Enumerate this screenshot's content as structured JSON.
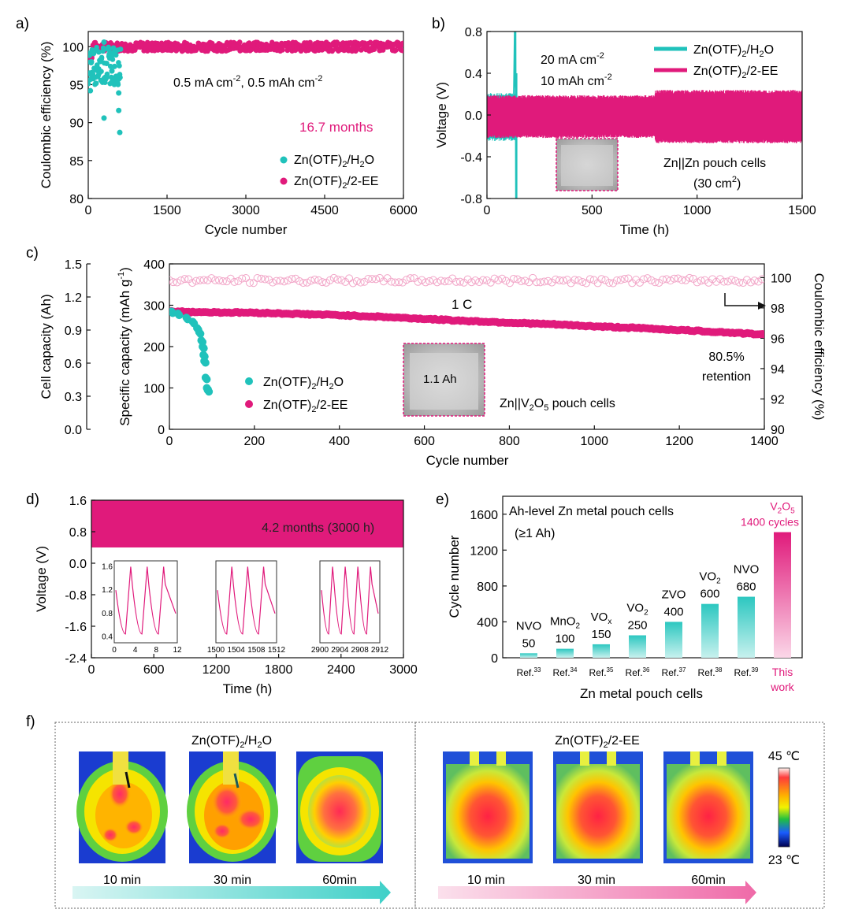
{
  "panels": {
    "a": "a)",
    "b": "b)",
    "c": "c)",
    "d": "d)",
    "e": "e)",
    "f": "f)"
  },
  "colors": {
    "teal": "#20c2bb",
    "pink": "#e01a7b",
    "pink_light": "#f2a6c8"
  },
  "chart_data": [
    {
      "id": "a",
      "type": "scatter",
      "xlabel": "Cycle number",
      "ylabel": "Coulombic efficiency (%)",
      "xlim": [
        0,
        6000
      ],
      "ylim": [
        80,
        102
      ],
      "xticks": [
        "0",
        "1500",
        "3000",
        "4500",
        "6000"
      ],
      "yticks": [
        "80",
        "85",
        "90",
        "95",
        "100"
      ],
      "annotation": "0.5 mA cm-2, 0.5 mAh cm-2",
      "highlight": "16.7 months",
      "series": [
        {
          "name": "Zn(OTF)2/H2O",
          "color": "#20c2bb",
          "x": [
            20,
            40,
            60,
            100,
            150,
            200,
            250,
            300,
            350,
            400,
            450,
            500,
            530,
            560,
            580,
            300,
            580,
            600
          ],
          "y": [
            96.5,
            94.2,
            98,
            99.1,
            99.6,
            99.3,
            98.4,
            100.6,
            97.8,
            99.0,
            96.8,
            97.4,
            96.1,
            95.2,
            93.9,
            90.6,
            91.6,
            88.7
          ]
        },
        {
          "name": "Zn(OTF)2/2-EE",
          "color": "#e01a7b",
          "x": [
            0,
            6000
          ],
          "y": [
            100,
            100
          ],
          "note": "dense band of points at ~100% from cycle 0 to 6000"
        }
      ]
    },
    {
      "id": "b",
      "type": "line",
      "xlabel": "Time (h)",
      "ylabel": "Voltage (V)",
      "xlim": [
        0,
        1500
      ],
      "ylim": [
        -0.8,
        0.8
      ],
      "xticks": [
        "0",
        "500",
        "1000",
        "1500"
      ],
      "yticks": [
        "-0.8",
        "-0.4",
        "0.0",
        "0.4",
        "0.8"
      ],
      "annotations": [
        "20 mA cm-2",
        "10 mAh cm-2"
      ],
      "note_text": [
        "Zn||Zn pouch cells",
        "(30 cm2)"
      ],
      "series": [
        {
          "name": "Zn(OTF)2/H2O",
          "color": "#20c2bb",
          "x": [
            0,
            140
          ],
          "y_band": [
            -0.25,
            0.8
          ],
          "note": "short-circuit spike near 140 h"
        },
        {
          "name": "Zn(OTF)2/2-EE",
          "color": "#e01a7b",
          "x": [
            0,
            1500
          ],
          "y_band": [
            -0.22,
            0.2
          ]
        }
      ]
    },
    {
      "id": "c",
      "type": "scatter",
      "xlabel": "Cycle number",
      "ylabel_left_outer": "Cell capacity (Ah)",
      "ylabel_left": "Specific capacity (mAh g-1)",
      "ylabel_right": "Coulombic efficiency (%)",
      "xlim": [
        0,
        1400
      ],
      "ylim": [
        0,
        400
      ],
      "y2lim": [
        90,
        100.9
      ],
      "xticks": [
        "0",
        "200",
        "400",
        "600",
        "800",
        "1000",
        "1200",
        "1400"
      ],
      "yticks": [
        "0",
        "100",
        "200",
        "300",
        "400"
      ],
      "outer_ticks": [
        "0.0",
        "0.3",
        "0.6",
        "0.9",
        "1.2",
        "1.5"
      ],
      "right_ticks": [
        "90",
        "92",
        "94",
        "96",
        "98",
        "100"
      ],
      "rate": "1 C",
      "retention": [
        "80.5%",
        "retention"
      ],
      "inset_label": "1.1 Ah",
      "caption": "Zn||V2O5 pouch cells",
      "series": [
        {
          "name": "Zn(OTF)2/2-EE",
          "color": "#e01a7b",
          "x": [
            0,
            100,
            200,
            300,
            400,
            500,
            600,
            700,
            800,
            900,
            1000,
            1100,
            1200,
            1300,
            1400
          ],
          "y": [
            285,
            283,
            282,
            279,
            276,
            272,
            267,
            262,
            258,
            254,
            249,
            245,
            240,
            235,
            229
          ]
        },
        {
          "name": "Zn(OTF)2/H2O",
          "color": "#20c2bb",
          "x": [
            5,
            20,
            40,
            55,
            65,
            70,
            75,
            78,
            80,
            82,
            85,
            88,
            90
          ],
          "y": [
            285,
            280,
            270,
            260,
            245,
            235,
            215,
            200,
            180,
            165,
            125,
            100,
            95
          ]
        },
        {
          "name": "Coulombic efficiency (2-EE)",
          "color": "#f2a6c8",
          "axis": "right",
          "x": [
            0,
            1400
          ],
          "y": [
            99.8,
            99.8
          ]
        }
      ]
    },
    {
      "id": "d",
      "type": "area",
      "xlabel": "Time (h)",
      "ylabel": "Voltage (V)",
      "xlim": [
        0,
        3000
      ],
      "ylim": [
        -2.4,
        1.6
      ],
      "xticks": [
        "0",
        "600",
        "1200",
        "1800",
        "2400",
        "3000"
      ],
      "yticks": [
        "-2.4",
        "-1.6",
        "-0.8",
        "0.0",
        "0.8",
        "1.6"
      ],
      "band": {
        "x": [
          0,
          3000
        ],
        "y": [
          0.4,
          1.6
        ],
        "color": "#e01a7b"
      },
      "label": "4.2 months (3000 h)",
      "insets": [
        {
          "xticks": [
            "0",
            "4",
            "8",
            "12"
          ],
          "yticks": [
            "0.4",
            "0.8",
            "1.2",
            "1.6"
          ],
          "peaks": 3
        },
        {
          "xticks": [
            "1500",
            "1504",
            "1508",
            "1512"
          ],
          "peaks": 3
        },
        {
          "xticks": [
            "2900",
            "2904",
            "2908",
            "2912"
          ],
          "peaks": 4
        }
      ]
    },
    {
      "id": "e",
      "type": "bar",
      "title": "Ah-level Zn metal pouch cells",
      "subtitle": "(≥1 Ah)",
      "xlabel": "Zn metal pouch cells",
      "ylabel": "Cycle number",
      "ylim": [
        0,
        1800
      ],
      "yticks": [
        "0",
        "400",
        "800",
        "1200",
        "1600"
      ],
      "bars": [
        {
          "ref": "Ref.",
          "sup": "33",
          "material": "NVO",
          "sub": "",
          "value": 50
        },
        {
          "ref": "Ref.",
          "sup": "34",
          "material": "MnO",
          "sub": "2",
          "value": 100
        },
        {
          "ref": "Ref.",
          "sup": "35",
          "material": "VO",
          "sub": "x",
          "value": 150
        },
        {
          "ref": "Ref.",
          "sup": "36",
          "material": "VO",
          "sub": "2",
          "value": 250
        },
        {
          "ref": "Ref.",
          "sup": "37",
          "material": "ZVO",
          "sub": "",
          "value": 400
        },
        {
          "ref": "Ref.",
          "sup": "38",
          "material": "VO",
          "sub": "2",
          "value": 600
        },
        {
          "ref": "Ref.",
          "sup": "39",
          "material": "NVO",
          "sub": "",
          "value": 680
        }
      ],
      "this_work": {
        "line1": "This",
        "line2": "work",
        "value": 1400,
        "label_top": "V2O5",
        "label_bottom": "1400 cycles"
      }
    }
  ],
  "thermal": {
    "group_left": "Zn(OTF)2/H2O",
    "group_right": "Zn(OTF)2/2-EE",
    "times": [
      "10 min",
      "30 min",
      "60min"
    ],
    "scale_max": "45 ℃",
    "scale_min": "23 ℃"
  }
}
